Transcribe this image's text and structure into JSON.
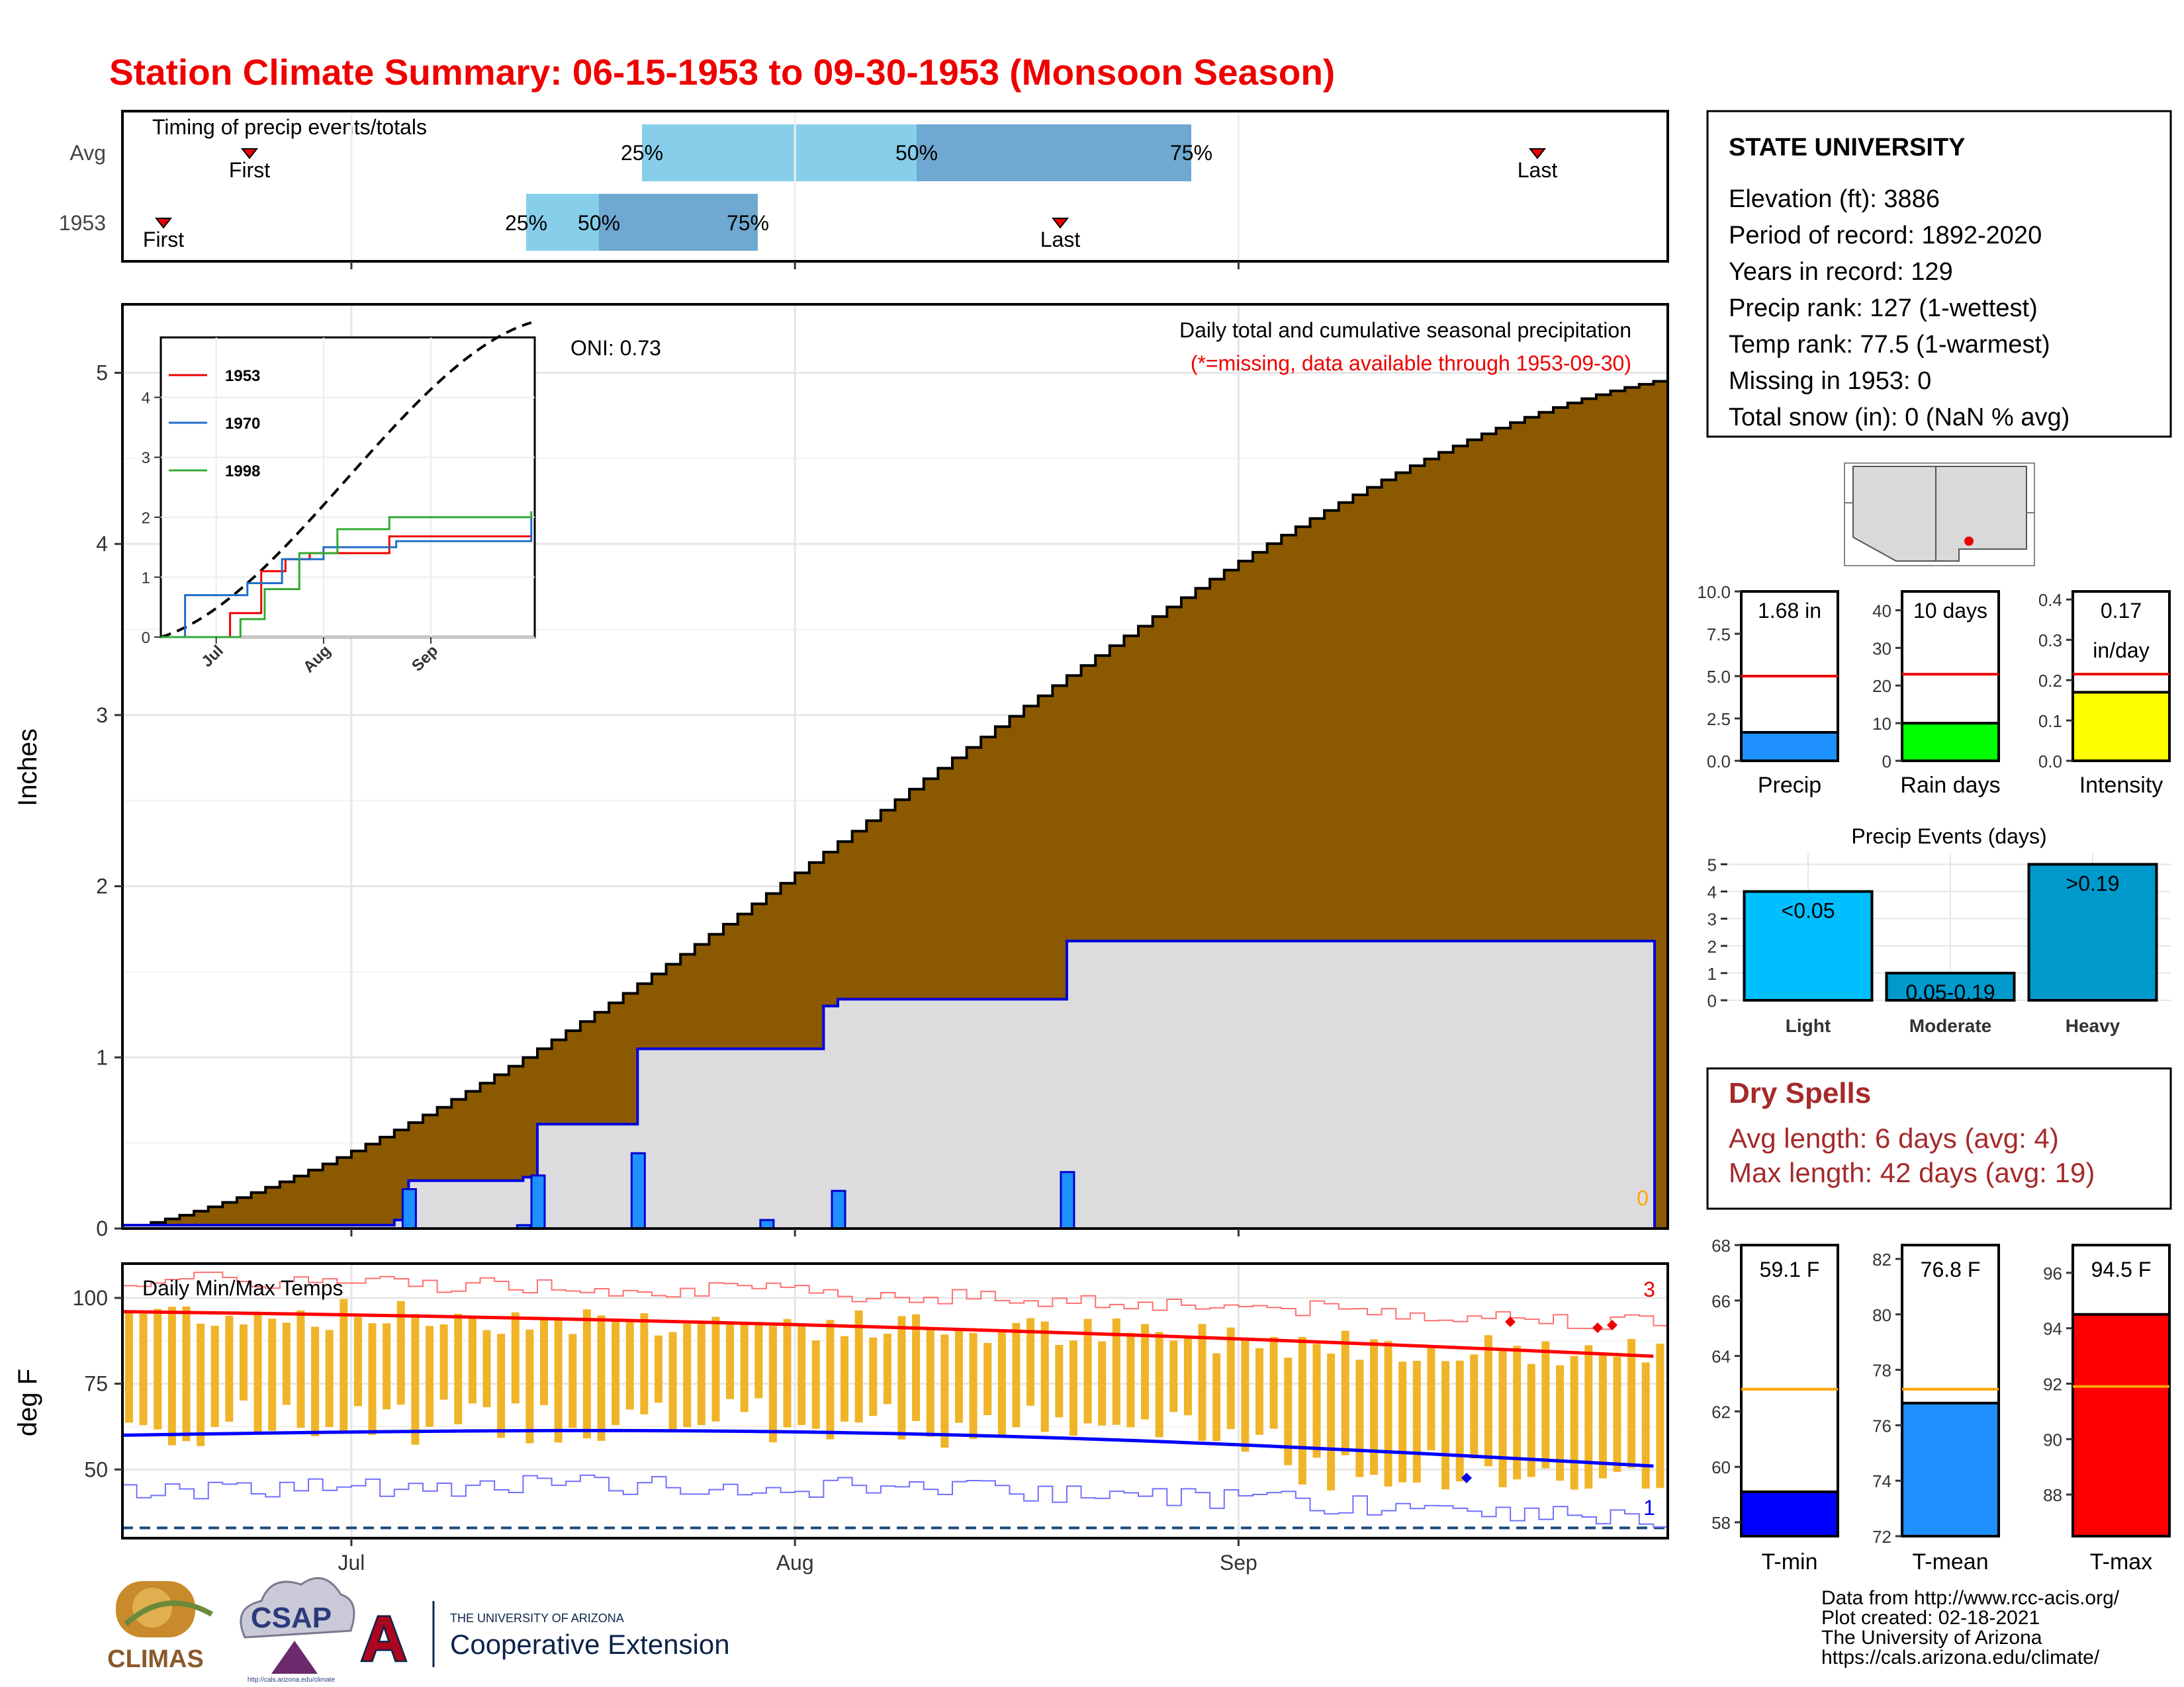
{
  "title": "Station Climate Summary: 06-15-1953 to 09-30-1953 (Monsoon Season)",
  "colors": {
    "title": "#ee0000",
    "cum_avg": "#8b5a00",
    "cum_year": "#dcdcdf",
    "daily_bar": "#1e90ff",
    "timing_light": "#87ceeb",
    "timing_dark": "#6fa8d0",
    "tmax": "#ff0000",
    "tmin": "#0000ff",
    "trange": "#f0b428",
    "dry": "#a52a2a",
    "rain_days": "#00ff00",
    "intensity": "#ffff00",
    "light": "#00bfff",
    "heavy": "#0099cc"
  },
  "timing": {
    "title": "Timing of precip events/totals",
    "rows": [
      {
        "label": "Avg",
        "first_label": "First",
        "last_label": "Last",
        "p25": "25%",
        "p50": "50%",
        "p75": "75%"
      },
      {
        "label": "1953",
        "first_label": "First",
        "last_label": "Last",
        "p25": "25%",
        "p50": "50%",
        "p75": "75%"
      }
    ]
  },
  "precip": {
    "ylabel": "Inches",
    "oni": "ONI: 0.73",
    "caption1": "Daily total and cumulative seasonal precipitation",
    "caption2": "(*=missing, data available through 1953-09-30)",
    "missing_count": "0",
    "yticks": [
      "0",
      "1",
      "2",
      "3",
      "4",
      "5"
    ],
    "months": [
      "Jul",
      "Aug",
      "Sep"
    ]
  },
  "inset": {
    "yticks": [
      "0",
      "1",
      "2",
      "3",
      "4"
    ],
    "months": [
      "Jul",
      "Aug",
      "Sep"
    ],
    "legend": [
      "1953",
      "1970",
      "1998"
    ]
  },
  "temps": {
    "title": "Daily Min/Max Temps",
    "ylabel": "deg F",
    "yticks": [
      "50",
      "75",
      "100"
    ],
    "months": [
      "Jul",
      "Aug",
      "Sep"
    ],
    "max_records": "3",
    "min_records": "1"
  },
  "station": {
    "name": "STATE UNIVERSITY",
    "lines": [
      "Elevation (ft): 3886",
      "Period of record: 1892-2020",
      "Years in record: 129",
      "Precip rank: 127 (1-wettest)",
      "Temp rank: 77.5 (1-warmest)",
      "Missing in 1953: 0",
      "Total snow (in): 0 (NaN % avg)"
    ]
  },
  "summary_bars": [
    {
      "label": "Precip",
      "value_text": "1.68 in",
      "value": 1.68,
      "avg": 5.0,
      "ymax": 10,
      "ticks": [
        "0.0",
        "2.5",
        "5.0",
        "7.5",
        "10.0"
      ],
      "color": "#1e90ff"
    },
    {
      "label": "Rain days",
      "value_text": "10 days",
      "value": 10,
      "avg": 23,
      "ymax": 45,
      "ticks": [
        "0",
        "10",
        "20",
        "30",
        "40"
      ],
      "color": "#00ff00"
    },
    {
      "label": "Intensity",
      "value_text": "0.17",
      "value_text2": "in/day",
      "value": 0.17,
      "avg": 0.215,
      "ymax": 0.42,
      "ticks": [
        "0.0",
        "0.1",
        "0.2",
        "0.3",
        "0.4"
      ],
      "color": "#ffff00"
    }
  ],
  "events": {
    "title": "Precip Events (days)",
    "yticks": [
      "0",
      "1",
      "2",
      "3",
      "4",
      "5"
    ],
    "bars": [
      {
        "cat": "Light",
        "label": "<0.05",
        "value": 4,
        "color": "#00bfff"
      },
      {
        "cat": "Moderate",
        "label": "0.05-0.19",
        "value": 1,
        "color": "#0099cc"
      },
      {
        "cat": "Heavy",
        "label": ">0.19",
        "value": 5,
        "color": "#0099cc"
      }
    ]
  },
  "dry": {
    "title": "Dry Spells",
    "avg_line": "Avg length: 6 days (avg: 4)",
    "max_line": "Max length: 42 days (avg: 19)"
  },
  "temp_bars": [
    {
      "label": "T-min",
      "value_text": "59.1 F",
      "value": 59.1,
      "avg": 62.8,
      "ymin": 57.5,
      "ymax": 68,
      "ticks": [
        "58",
        "60",
        "62",
        "64",
        "66",
        "68"
      ],
      "color": "#0000ff"
    },
    {
      "label": "T-mean",
      "value_text": "76.8 F",
      "value": 76.8,
      "avg": 77.3,
      "ymin": 72,
      "ymax": 82.5,
      "ticks": [
        "72",
        "74",
        "76",
        "78",
        "80",
        "82"
      ],
      "color": "#1e90ff"
    },
    {
      "label": "T-max",
      "value_text": "94.5 F",
      "value": 94.5,
      "avg": 91.9,
      "ymin": 86.5,
      "ymax": 97,
      "ticks": [
        "88",
        "90",
        "92",
        "94",
        "96"
      ],
      "color": "#ff0000"
    }
  ],
  "credits": [
    "Data from http://www.rcc-acis.org/",
    "Plot created: 02-18-2021",
    "The University of Arizona",
    "https://cals.arizona.edu/climate/"
  ],
  "logos": {
    "climas": "CLIMAS",
    "csap": "CSAP",
    "csap_url": "http://cals.arizona.edu/climate",
    "ua_line1": "THE UNIVERSITY OF ARIZONA",
    "ua_line2": "Cooperative Extension"
  },
  "chart_data": [
    {
      "type": "area",
      "name": "cumulative precipitation",
      "x_range": [
        "1953-06-15",
        "1953-09-30"
      ],
      "ylim": [
        0,
        5.4
      ],
      "avg_cumulative_end": 4.95,
      "year_cumulative_steps": [
        [
          "1953-06-15",
          0.02
        ],
        [
          "1953-07-04",
          0.05
        ],
        [
          "1953-07-05",
          0.28
        ],
        [
          "1953-07-13",
          0.3
        ],
        [
          "1953-07-14",
          0.61
        ],
        [
          "1953-07-21",
          1.05
        ],
        [
          "1953-08-03",
          1.3
        ],
        [
          "1953-08-04",
          1.34
        ],
        [
          "1953-08-20",
          1.68
        ],
        [
          "1953-09-30",
          1.68
        ]
      ],
      "daily_bars": [
        [
          "1953-07-05",
          0.23
        ],
        [
          "1953-07-13",
          0.02
        ],
        [
          "1953-07-14",
          0.31
        ],
        [
          "1953-07-21",
          0.44
        ],
        [
          "1953-07-30",
          0.05
        ],
        [
          "1953-08-04",
          0.22
        ],
        [
          "1953-08-20",
          0.33
        ]
      ]
    },
    {
      "type": "line",
      "name": "inset cumulative comparison",
      "ylim": [
        0,
        5
      ],
      "series": [
        {
          "name": "1953",
          "points": [
            [
              "1953-06-15",
              0
            ],
            [
              "1953-07-05",
              0.4
            ],
            [
              "1953-07-14",
              1.1
            ],
            [
              "1953-07-21",
              1.3
            ],
            [
              "1953-07-28",
              1.4
            ],
            [
              "1953-08-20",
              1.68
            ],
            [
              "1953-09-30",
              1.68
            ]
          ]
        },
        {
          "name": "1970",
          "points": [
            [
              "1953-06-15",
              0
            ],
            [
              "1953-06-22",
              0.7
            ],
            [
              "1953-07-10",
              0.9
            ],
            [
              "1953-07-20",
              1.3
            ],
            [
              "1953-08-01",
              1.5
            ],
            [
              "1953-08-22",
              1.6
            ],
            [
              "1953-09-30",
              2.0
            ]
          ]
        },
        {
          "name": "1998",
          "points": [
            [
              "1953-06-15",
              0
            ],
            [
              "1953-07-08",
              0.3
            ],
            [
              "1953-07-15",
              0.8
            ],
            [
              "1953-07-25",
              1.4
            ],
            [
              "1953-08-05",
              1.8
            ],
            [
              "1953-08-20",
              2.0
            ],
            [
              "1953-09-30",
              2.1
            ]
          ]
        }
      ]
    },
    {
      "type": "line",
      "name": "daily temperatures",
      "ylim": [
        30,
        110
      ],
      "tmax_avg_start": 96,
      "tmax_avg_end": 83,
      "tmin_avg_start": 60,
      "tmin_avg_end": 51,
      "record_line": 33
    }
  ]
}
